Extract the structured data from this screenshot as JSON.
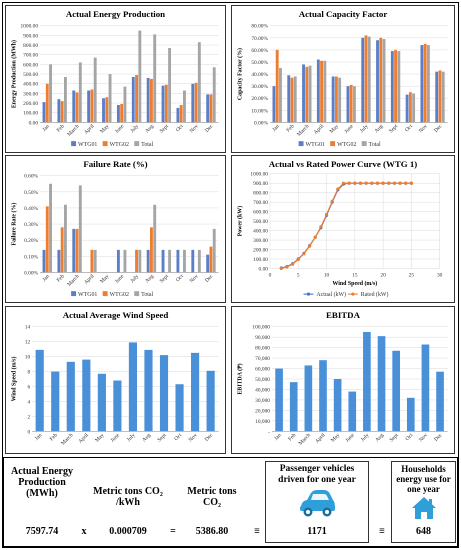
{
  "colors": {
    "wtg01": "#5b7fc7",
    "wtg02": "#ed7d31",
    "total": "#a5a5a5",
    "actual": "#4472c4",
    "rated": "#ed7d31",
    "blue": "#4a90d9",
    "vehicle": "#2e9fd9"
  },
  "chart_data": [
    {
      "type": "bar",
      "title": "Actual Energy Production",
      "ylabel": "Energy Production (MWh)",
      "categories": [
        "Jan",
        "Feb",
        "March",
        "April",
        "May",
        "June",
        "July",
        "Aug",
        "Sept",
        "Oct",
        "Nov",
        "Dec"
      ],
      "ylim": [
        0,
        1000
      ],
      "yticks": [
        "0.00",
        "100.00",
        "200.00",
        "300.00",
        "400.00",
        "500.00",
        "600.00",
        "700.00",
        "800.00",
        "900.00",
        "1000.00"
      ],
      "series": [
        {
          "name": "WTG01",
          "values": [
            210,
            240,
            330,
            330,
            250,
            180,
            470,
            460,
            380,
            150,
            400,
            290
          ]
        },
        {
          "name": "WTG02",
          "values": [
            400,
            220,
            310,
            340,
            260,
            190,
            490,
            450,
            390,
            180,
            410,
            290
          ]
        },
        {
          "name": "Total",
          "values": [
            600,
            470,
            620,
            670,
            500,
            370,
            950,
            910,
            770,
            330,
            830,
            570
          ]
        }
      ],
      "legend": "bottom"
    },
    {
      "type": "bar",
      "title": "Actual Capacity Factor",
      "ylabel": "Capacity Factor (%)",
      "categories": [
        "Jan",
        "Feb",
        "March",
        "April",
        "May",
        "June",
        "July",
        "Aug",
        "Sept",
        "Oct",
        "Nov",
        "Dec"
      ],
      "ylim": [
        0,
        80
      ],
      "yticks": [
        "0.00%",
        "10.00%",
        "20.00%",
        "30.00%",
        "40.00%",
        "50.00%",
        "60.00%",
        "70.00%",
        "80.00%"
      ],
      "series": [
        {
          "name": "WTG01",
          "values": [
            30,
            39,
            48,
            52,
            38,
            30,
            70,
            68,
            59,
            23,
            64,
            42
          ]
        },
        {
          "name": "WTG02",
          "values": [
            60,
            37,
            46,
            51,
            38,
            31,
            72,
            70,
            60,
            25,
            65,
            43
          ]
        },
        {
          "name": "Total",
          "values": [
            45,
            38,
            47,
            51,
            37,
            30,
            71,
            69,
            59,
            24,
            64,
            42
          ]
        }
      ],
      "legend": "bottom"
    },
    {
      "type": "bar",
      "title": "Failure Rate (%)",
      "ylabel": "Failure Rate (%)",
      "categories": [
        "Jan",
        "Feb",
        "March",
        "April",
        "May",
        "June",
        "July",
        "Aug",
        "Sept",
        "Oct",
        "Nov",
        "Dec"
      ],
      "ylim": [
        0,
        0.6
      ],
      "yticks": [
        "0.00%",
        "0.10%",
        "0.20%",
        "0.30%",
        "0.40%",
        "0.50%",
        "0.60%"
      ],
      "series": [
        {
          "name": "WTG01",
          "values": [
            0.14,
            0.14,
            0.27,
            0,
            0,
            0.14,
            0,
            0.14,
            0.14,
            0.14,
            0.14,
            0.11
          ]
        },
        {
          "name": "WTG02",
          "values": [
            0.41,
            0.28,
            0.27,
            0.14,
            0,
            0,
            0.14,
            0.28,
            0,
            0,
            0,
            0.16
          ]
        },
        {
          "name": "Total",
          "values": [
            0.55,
            0.42,
            0.54,
            0.14,
            0,
            0.14,
            0.14,
            0.42,
            0.14,
            0.14,
            0.14,
            0.27
          ]
        }
      ],
      "legend": "bottom"
    },
    {
      "type": "line",
      "title": "Actual vs Rated Power Curve (WTG 1)",
      "xlabel": "Wind Speed (m/s)",
      "ylabel": "Power (kW)",
      "xlim": [
        0,
        30
      ],
      "xticks": [
        0,
        5,
        10,
        15,
        20,
        25,
        30
      ],
      "ylim": [
        0,
        1000
      ],
      "yticks": [
        "0.00",
        "100.00",
        "200.00",
        "300.00",
        "400.00",
        "500.00",
        "600.00",
        "700.00",
        "800.00",
        "900.00",
        "1000.00"
      ],
      "x": [
        2,
        3,
        4,
        5,
        6,
        7,
        8,
        9,
        10,
        11,
        12,
        13,
        14,
        15,
        16,
        17,
        18,
        19,
        20,
        21,
        22,
        23,
        24,
        25
      ],
      "series": [
        {
          "name": "Actual (kW)",
          "values": [
            5,
            20,
            50,
            100,
            160,
            240,
            330,
            430,
            560,
            700,
            830,
            890,
            900,
            900,
            900,
            900,
            900,
            900,
            900,
            900,
            900,
            900,
            900,
            900
          ]
        },
        {
          "name": "Rated (kW)",
          "values": [
            0,
            15,
            45,
            95,
            155,
            235,
            330,
            440,
            570,
            710,
            840,
            900,
            900,
            900,
            900,
            900,
            900,
            900,
            900,
            900,
            900,
            900,
            900,
            900
          ]
        }
      ],
      "legend": "bottom"
    },
    {
      "type": "bar",
      "title": "Actual Average Wind Speed",
      "ylabel": "Wind Speed (m/s)",
      "categories": [
        "Jan",
        "Feb",
        "March",
        "April",
        "May",
        "June",
        "July",
        "Aug",
        "Sept",
        "Oct",
        "Nov",
        "Dec"
      ],
      "ylim": [
        0,
        14
      ],
      "yticks": [
        "0",
        "2",
        "4",
        "6",
        "8",
        "10",
        "12",
        "14"
      ],
      "values": [
        10.9,
        8.0,
        9.3,
        9.6,
        7.7,
        6.8,
        11.9,
        10.9,
        10.2,
        6.3,
        10.5,
        8.1
      ]
    },
    {
      "type": "bar",
      "title": "EBITDA",
      "ylabel": "EBITDA (₱)",
      "categories": [
        "Jan",
        "Feb",
        "March",
        "April",
        "May",
        "June",
        "July",
        "Aug",
        "Sept",
        "Oct",
        "Nov",
        "Dec"
      ],
      "ylim": [
        0,
        100000
      ],
      "yticks": [
        "-",
        "10,000",
        "20,000",
        "30,000",
        "40,000",
        "50,000",
        "60,000",
        "70,000",
        "80,000",
        "90,000",
        "100,000"
      ],
      "values": [
        60000,
        47000,
        63000,
        68000,
        50000,
        38000,
        95000,
        91000,
        77000,
        32000,
        83000,
        57000
      ]
    }
  ],
  "summary": {
    "energy_label": "Actual Energy Production (MWh)",
    "energy_value": "7597.74",
    "op_times": "x",
    "factor_label": "Metric tons CO₂ /kWh",
    "factor_value": "0.000709",
    "op_equals": "=",
    "co2_label": "Metric tons CO₂",
    "co2_value": "5386.80",
    "op_equiv1": "≡",
    "vehicles_label": "Passenger vehicles driven for one year",
    "vehicles_value": "1171",
    "op_equiv2": "≡",
    "households_label": "Households energy use for one year",
    "households_value": "648"
  }
}
